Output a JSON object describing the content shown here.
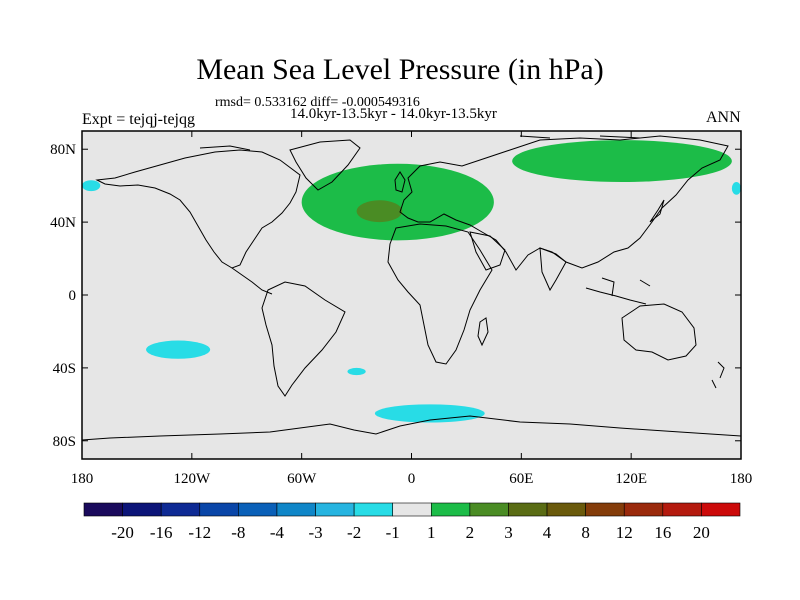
{
  "title": "Mean Sea Level Pressure (in hPa)",
  "stats": "rmsd= 0.533162 diff= -0.000549316",
  "period": "14.0kyr-13.5kyr - 14.0kyr-13.5kyr",
  "experiment": "Expt = tejqj-tejqg",
  "season": "ANN",
  "colors": {
    "background_land_ocean": "#e6e6e6",
    "coastline": "#000000",
    "levels": [
      "#1a0a5c",
      "#0c1478",
      "#0e2a94",
      "#0a46a8",
      "#0a60b8",
      "#0f86c8",
      "#26b4e0",
      "#28dce6",
      "#e6e6e6",
      "#1cbc48",
      "#4a8c24",
      "#5a6c14",
      "#6a5a0c",
      "#843c0a",
      "#9a2a0c",
      "#b41a0e",
      "#cc0a0a"
    ]
  },
  "chart_data": {
    "type": "heatmap",
    "variable": "Mean Sea Level Pressure difference",
    "units": "hPa",
    "x_axis": {
      "range": [
        -180,
        180
      ],
      "tick_labels": [
        "180",
        "120W",
        "60W",
        "0",
        "60E",
        "120E",
        "180"
      ]
    },
    "y_axis": {
      "range": [
        -90,
        90
      ],
      "tick_labels": [
        "80N",
        "40N",
        "0",
        "40S",
        "80S"
      ]
    },
    "colorbar": {
      "labels": [
        "-20",
        "-16",
        "-12",
        "-8",
        "-4",
        "-3",
        "-2",
        "-1",
        "1",
        "2",
        "3",
        "4",
        "8",
        "12",
        "16",
        "20"
      ]
    },
    "anomalies": [
      {
        "region": "North Atlantic / Europe",
        "level_range": "1 to 2",
        "lon": [
          -60,
          45
        ],
        "lat": [
          30,
          72
        ]
      },
      {
        "region": "North Atlantic core",
        "level_range": "2 to 3",
        "lon": [
          -30,
          -5
        ],
        "lat": [
          40,
          52
        ]
      },
      {
        "region": "Arctic Siberia",
        "level_range": "1 to 2",
        "lon": [
          55,
          175
        ],
        "lat": [
          62,
          85
        ]
      },
      {
        "region": "North Pacific west",
        "level_range": "-2 to -1",
        "lon": [
          -180,
          -170
        ],
        "lat": [
          57,
          63
        ]
      },
      {
        "region": "North Pacific east",
        "level_range": "-2 to -1",
        "lon": [
          175,
          180
        ],
        "lat": [
          55,
          62
        ]
      },
      {
        "region": "South Pacific",
        "level_range": "-2 to -1",
        "lon": [
          -145,
          -110
        ],
        "lat": [
          -35,
          -25
        ]
      },
      {
        "region": "South Atlantic",
        "level_range": "-2 to -1",
        "lon": [
          -35,
          -25
        ],
        "lat": [
          -44,
          -40
        ]
      },
      {
        "region": "Southern Ocean",
        "level_range": "-2 to -1",
        "lon": [
          -20,
          40
        ],
        "lat": [
          -70,
          -60
        ]
      }
    ]
  }
}
